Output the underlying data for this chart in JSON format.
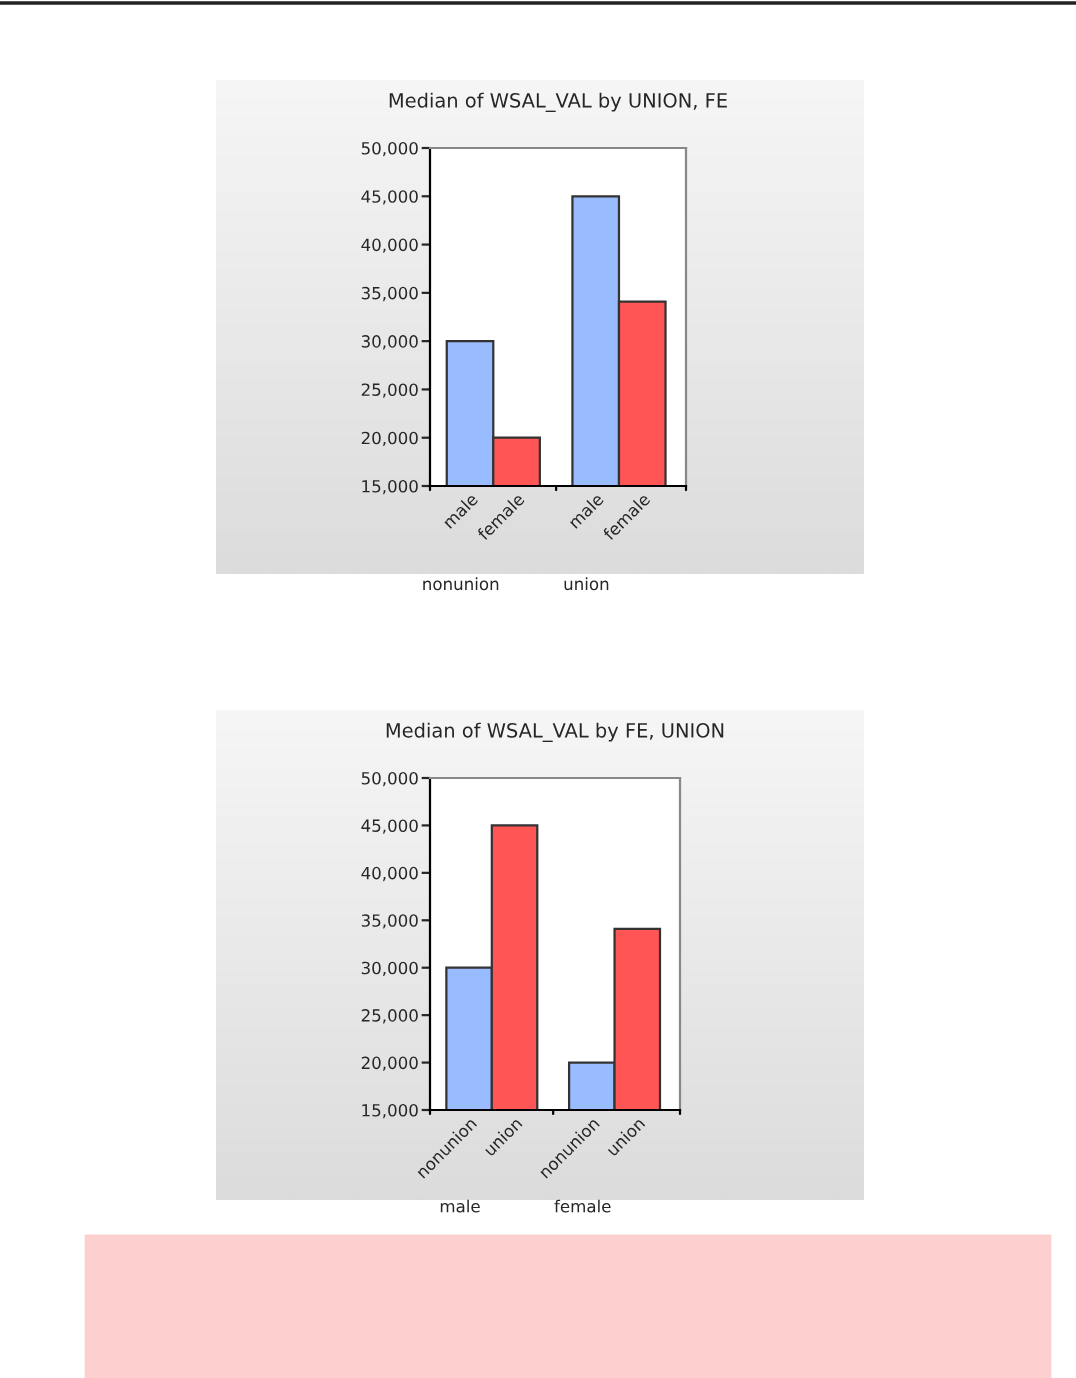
{
  "chart_data": [
    {
      "type": "bar",
      "title": "Median of WSAL_VAL by UNION, FE",
      "categories": [
        "male",
        "female",
        "male",
        "female"
      ],
      "values": [
        30000,
        20000,
        45000,
        34100
      ],
      "colors": [
        "#99bbff",
        "#ff5555",
        "#99bbff",
        "#ff5555"
      ],
      "ylim": [
        15000,
        50000
      ],
      "yticks": [
        {
          "value": 15000,
          "label": "15,000"
        },
        {
          "value": 20000,
          "label": "20,000"
        },
        {
          "value": 25000,
          "label": "25,000"
        },
        {
          "value": 30000,
          "label": "30,000"
        },
        {
          "value": 35000,
          "label": "35,000"
        },
        {
          "value": 40000,
          "label": "40,000"
        },
        {
          "value": 45000,
          "label": "45,000"
        },
        {
          "value": 50000,
          "label": "50,000"
        }
      ],
      "annotations": [
        "nonunion",
        "union"
      ]
    },
    {
      "type": "bar",
      "title": "Median of WSAL_VAL by FE, UNION",
      "categories": [
        "nonunion",
        "union",
        "nonunion",
        "union"
      ],
      "values": [
        30000,
        45000,
        20000,
        34100
      ],
      "colors": [
        "#99bbff",
        "#ff5555",
        "#99bbff",
        "#ff5555"
      ],
      "ylim": [
        15000,
        50000
      ],
      "yticks": [
        {
          "value": 15000,
          "label": "15,000"
        },
        {
          "value": 20000,
          "label": "20,000"
        },
        {
          "value": 25000,
          "label": "25,000"
        },
        {
          "value": 30000,
          "label": "30,000"
        },
        {
          "value": 35000,
          "label": "35,000"
        },
        {
          "value": 40000,
          "label": "40,000"
        },
        {
          "value": 45000,
          "label": "45,000"
        },
        {
          "value": 50000,
          "label": "50,000"
        }
      ],
      "annotations": [
        "male",
        "female"
      ]
    }
  ]
}
